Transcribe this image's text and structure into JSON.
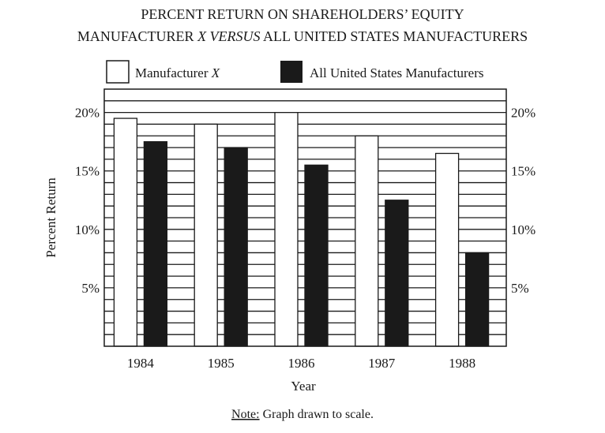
{
  "chart_data": {
    "type": "bar",
    "title_line1": "PERCENT RETURN ON SHAREHOLDERS’ EQUITY",
    "title_line2_a": "MANUFACTURER ",
    "title_line2_b": "X VERSUS",
    "title_line2_c": " ALL UNITED STATES MANUFACTURERS",
    "categories": [
      "1984",
      "1985",
      "1986",
      "1987",
      "1988"
    ],
    "series": [
      {
        "name": "Manufacturer",
        "name_italic": "X",
        "color": "#ffffff",
        "values": [
          19.5,
          19,
          20,
          18,
          16.5
        ]
      },
      {
        "name": "All United States Manufacturers",
        "color": "#1a1a1a",
        "values": [
          17.5,
          17,
          15.5,
          12.5,
          8
        ]
      }
    ],
    "xlabel": "Year",
    "ylabel": "Percent Return",
    "ylim": [
      0,
      22
    ],
    "yticks": [
      5,
      10,
      15,
      20
    ],
    "ytick_labels": [
      "5%",
      "10%",
      "15%",
      "20%"
    ],
    "grid": true,
    "grid_step": 1,
    "legend_position": "top",
    "note_label": "Note:",
    "note_text": " Graph drawn to scale."
  }
}
